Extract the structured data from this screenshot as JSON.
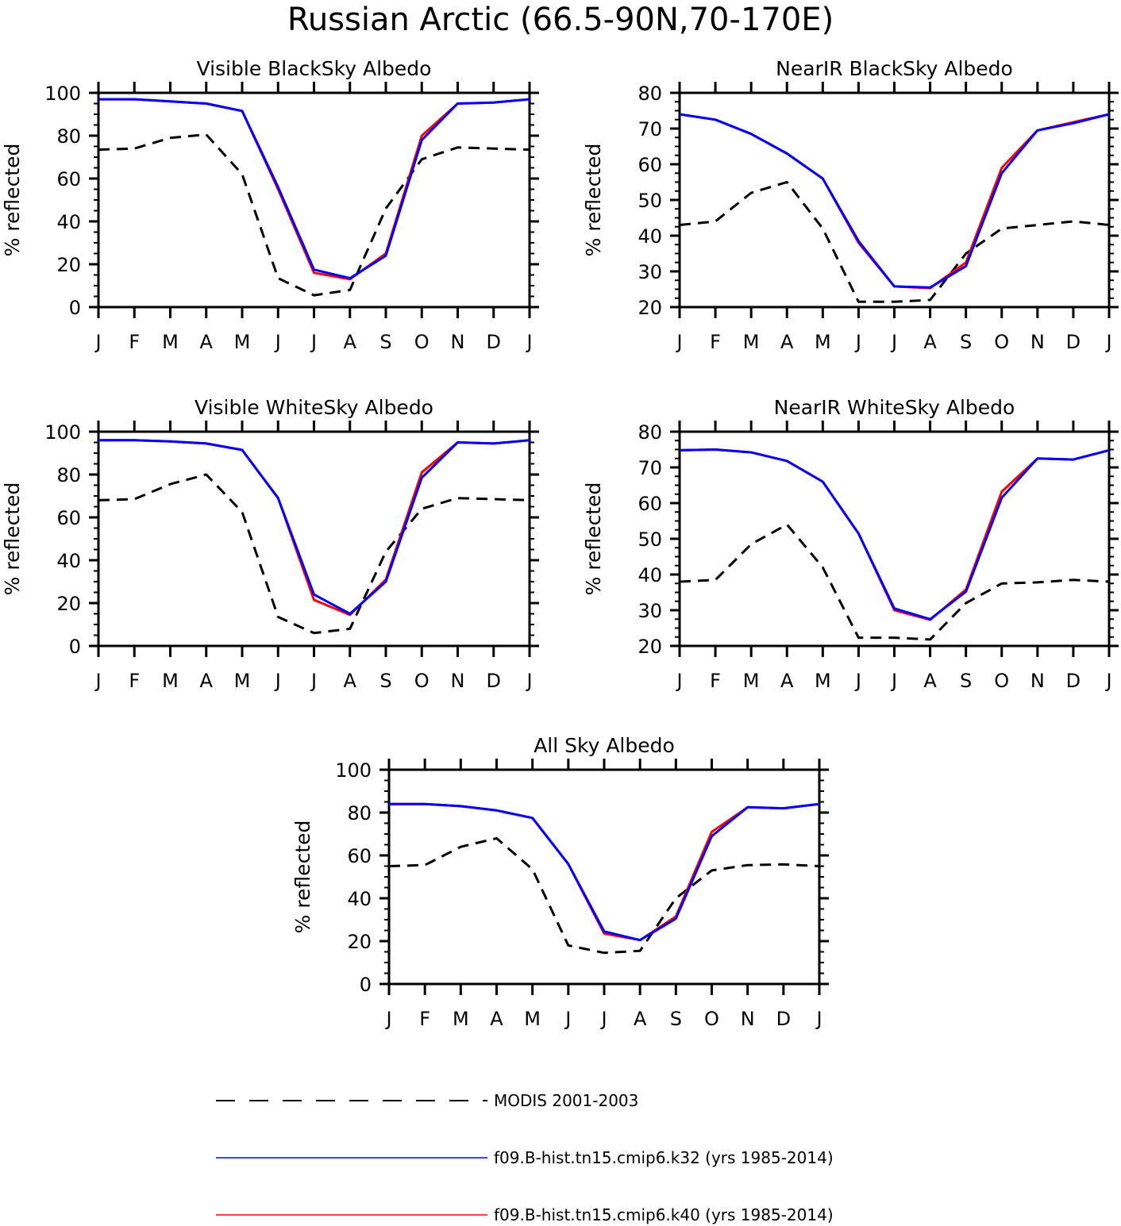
{
  "figure": {
    "title": "Russian Arctic (66.5-90N,70-170E)"
  },
  "legend": [
    {
      "label": "MODIS 2001-2003",
      "color": "#000000",
      "dashed": true
    },
    {
      "label": "f09.B-hist.tn15.cmip6.k32 (yrs 1985-2014)",
      "color": "#0000ff",
      "dashed": false
    },
    {
      "label": "f09.B-hist.tn15.cmip6.k40 (yrs 1985-2014)",
      "color": "#ff0000",
      "dashed": false
    }
  ],
  "chart_data": [
    {
      "type": "line",
      "title": "Visible BlackSky Albedo",
      "ylabel": "% reflected",
      "xlabel": "",
      "x": [
        "J",
        "F",
        "M",
        "A",
        "M",
        "J",
        "J",
        "A",
        "S",
        "O",
        "N",
        "D",
        "J"
      ],
      "ylim": [
        0,
        100
      ],
      "yticks": [
        0,
        20,
        40,
        60,
        80,
        100
      ],
      "grid": false,
      "series": [
        {
          "name": "MODIS 2001-2003",
          "values": [
            73.5,
            74,
            79,
            80.5,
            62,
            13.5,
            5.5,
            8,
            46,
            69,
            74.5,
            74,
            73.5
          ]
        },
        {
          "name": "f09.B-hist.tn15.cmip6.k32 (yrs 1985-2014)",
          "values": [
            97,
            97,
            96,
            95,
            91.5,
            56,
            17.5,
            13.5,
            24,
            78,
            95,
            95.5,
            97
          ]
        },
        {
          "name": "f09.B-hist.tn15.cmip6.k40 (yrs 1985-2014)",
          "values": [
            97,
            97,
            96,
            95,
            91.5,
            55,
            16,
            13,
            25,
            80,
            95,
            95.5,
            97
          ]
        }
      ]
    },
    {
      "type": "line",
      "title": "NearIR BlackSky Albedo",
      "ylabel": "% reflected",
      "xlabel": "",
      "x": [
        "J",
        "F",
        "M",
        "A",
        "M",
        "J",
        "J",
        "A",
        "S",
        "O",
        "N",
        "D",
        "J"
      ],
      "ylim": [
        20,
        80
      ],
      "yticks": [
        20,
        30,
        40,
        50,
        60,
        70,
        80
      ],
      "grid": false,
      "series": [
        {
          "name": "MODIS 2001-2003",
          "values": [
            43,
            44,
            52,
            55,
            42,
            21.5,
            21.5,
            22,
            35,
            42,
            43,
            44,
            43
          ]
        },
        {
          "name": "f09.B-hist.tn15.cmip6.k32 (yrs 1985-2014)",
          "values": [
            74,
            72.5,
            68.5,
            63,
            56,
            38.5,
            25.8,
            25.5,
            31.5,
            57.5,
            69.5,
            71.5,
            74
          ]
        },
        {
          "name": "f09.B-hist.tn15.cmip6.k40 (yrs 1985-2014)",
          "values": [
            74,
            72.5,
            68.5,
            63,
            56,
            38,
            25.8,
            25.3,
            32.5,
            59,
            69.5,
            71.8,
            74
          ]
        }
      ]
    },
    {
      "type": "line",
      "title": "Visible WhiteSky Albedo",
      "ylabel": "% reflected",
      "xlabel": "",
      "x": [
        "J",
        "F",
        "M",
        "A",
        "M",
        "J",
        "J",
        "A",
        "S",
        "O",
        "N",
        "D",
        "J"
      ],
      "ylim": [
        0,
        100
      ],
      "yticks": [
        0,
        20,
        40,
        60,
        80,
        100
      ],
      "grid": false,
      "series": [
        {
          "name": "MODIS 2001-2003",
          "values": [
            68,
            68.5,
            75.5,
            80,
            62.5,
            13.5,
            6,
            8,
            44,
            64,
            69,
            68.5,
            68
          ]
        },
        {
          "name": "f09.B-hist.tn15.cmip6.k32 (yrs 1985-2014)",
          "values": [
            96,
            96,
            95.5,
            94.5,
            91.5,
            69,
            24,
            15,
            30,
            78.5,
            95,
            94.5,
            96
          ]
        },
        {
          "name": "f09.B-hist.tn15.cmip6.k40 (yrs 1985-2014)",
          "values": [
            96,
            96,
            95.5,
            94.5,
            91.5,
            69,
            21.5,
            14.5,
            31,
            81,
            95,
            94.5,
            96
          ]
        }
      ]
    },
    {
      "type": "line",
      "title": "NearIR WhiteSky Albedo",
      "ylabel": "% reflected",
      "xlabel": "",
      "x": [
        "J",
        "F",
        "M",
        "A",
        "M",
        "J",
        "J",
        "A",
        "S",
        "O",
        "N",
        "D",
        "J"
      ],
      "ylim": [
        20,
        80
      ],
      "yticks": [
        20,
        30,
        40,
        50,
        60,
        70,
        80
      ],
      "grid": false,
      "series": [
        {
          "name": "MODIS 2001-2003",
          "values": [
            38,
            38.5,
            48.5,
            54,
            42,
            22.3,
            22.3,
            21.8,
            32,
            37.5,
            37.8,
            38.5,
            38
          ]
        },
        {
          "name": "f09.B-hist.tn15.cmip6.k32 (yrs 1985-2014)",
          "values": [
            74.8,
            75,
            74.2,
            71.8,
            66,
            51.5,
            30.5,
            27.5,
            35.2,
            61.5,
            72.5,
            72.2,
            74.8
          ]
        },
        {
          "name": "f09.B-hist.tn15.cmip6.k40 (yrs 1985-2014)",
          "values": [
            74.8,
            75,
            74.2,
            71.8,
            66,
            51.5,
            30,
            27.3,
            35.8,
            63.2,
            72.5,
            72.2,
            74.8
          ]
        }
      ]
    },
    {
      "type": "line",
      "title": "All Sky Albedo",
      "ylabel": "% reflected",
      "xlabel": "",
      "x": [
        "J",
        "F",
        "M",
        "A",
        "M",
        "J",
        "J",
        "A",
        "S",
        "O",
        "N",
        "D",
        "J"
      ],
      "ylim": [
        0,
        100
      ],
      "yticks": [
        0,
        20,
        40,
        60,
        80,
        100
      ],
      "grid": false,
      "series": [
        {
          "name": "MODIS 2001-2003",
          "values": [
            55,
            55.5,
            64,
            68,
            53.5,
            18,
            14.5,
            15.5,
            40,
            53,
            55.5,
            55.8,
            55
          ]
        },
        {
          "name": "f09.B-hist.tn15.cmip6.k32 (yrs 1985-2014)",
          "values": [
            84,
            84,
            83,
            81,
            77.5,
            56,
            24.5,
            20.5,
            30.5,
            69,
            82.5,
            82,
            84
          ]
        },
        {
          "name": "f09.B-hist.tn15.cmip6.k40 (yrs 1985-2014)",
          "values": [
            84,
            84,
            83,
            81,
            77.5,
            56,
            23.5,
            20.5,
            31.5,
            71,
            82.5,
            82,
            84
          ]
        }
      ]
    }
  ]
}
